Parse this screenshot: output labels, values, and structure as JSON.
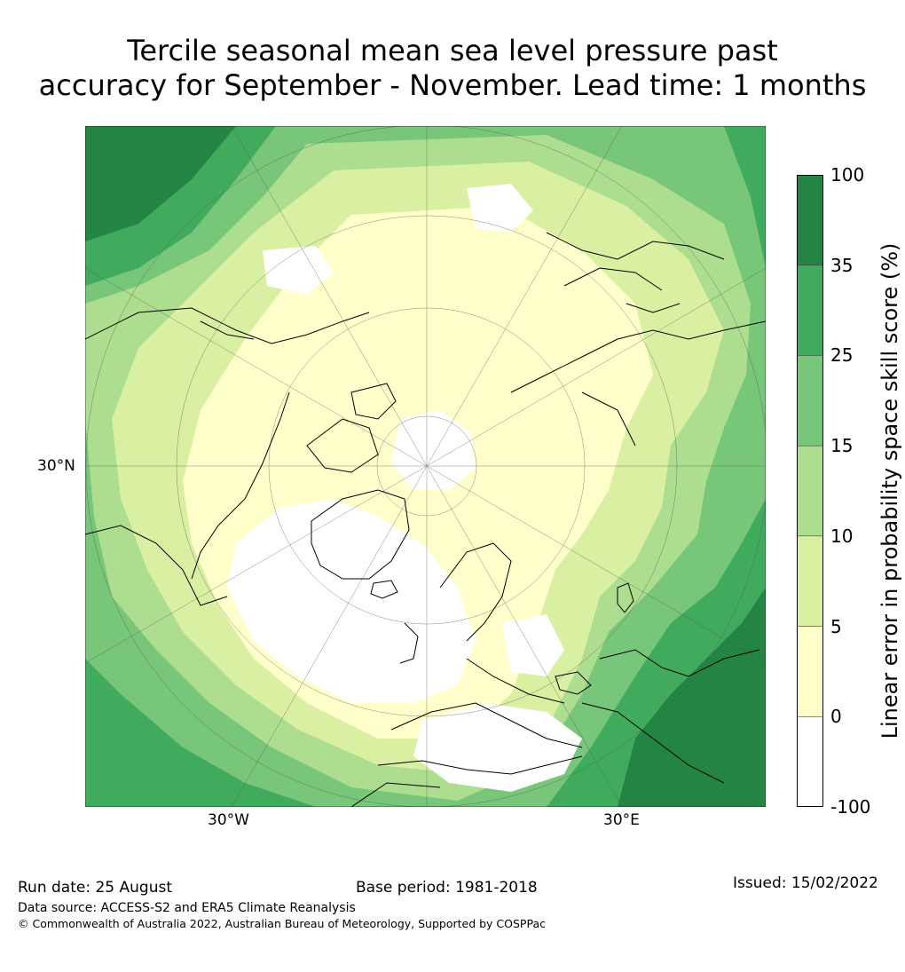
{
  "title_line1": "Tercile seasonal mean sea level pressure past",
  "title_line2": "accuracy for September - November. Lead time: 1 months",
  "map": {
    "projection": "north polar stereographic",
    "latitude_label": "30°N",
    "longitude_labels": [
      "30°W",
      "30°E"
    ],
    "regions": [
      {
        "name": "deep-green",
        "color": "#238443"
      },
      {
        "name": "green",
        "color": "#41ab5d"
      },
      {
        "name": "mid-green",
        "color": "#78c679"
      },
      {
        "name": "light-green",
        "color": "#addd8e"
      },
      {
        "name": "yellow-green",
        "color": "#d9f0a3"
      },
      {
        "name": "cream",
        "color": "#ffffcc"
      },
      {
        "name": "white",
        "color": "#ffffff"
      }
    ]
  },
  "colorbar": {
    "title": "Linear error in probability space skill score (%)",
    "bins": [
      {
        "from": "-100",
        "to": "0",
        "color": "#ffffff"
      },
      {
        "from": "0",
        "to": "5",
        "color": "#ffffcc"
      },
      {
        "from": "5",
        "to": "10",
        "color": "#d9f0a3"
      },
      {
        "from": "10",
        "to": "15",
        "color": "#addd8e"
      },
      {
        "from": "15",
        "to": "25",
        "color": "#78c679"
      },
      {
        "from": "25",
        "to": "35",
        "color": "#41ab5d"
      },
      {
        "from": "35",
        "to": "100",
        "color": "#238443"
      }
    ],
    "tick_labels": [
      "-100",
      "0",
      "5",
      "10",
      "15",
      "25",
      "35",
      "100"
    ]
  },
  "footer": {
    "run_date": "Run date: 25 August",
    "base_period": "Base period: 1981-2018",
    "issued": "Issued: 15/02/2022",
    "data_source": "Data source: ACCESS-S2 and ERA5 Climate Reanalysis",
    "copyright": "© Commonwealth of Australia 2022, Australian Bureau of Meteorology, Supported by COSPPac"
  }
}
